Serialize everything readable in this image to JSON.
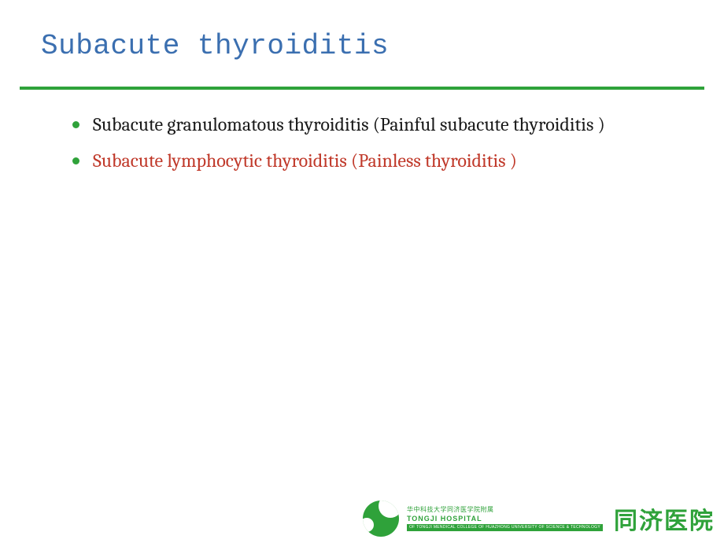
{
  "slide": {
    "title": "Subacute thyroiditis",
    "title_color": "#3b6fb0",
    "title_fontsize": 36,
    "title_font": "Courier New",
    "divider_color": "#2fa23a",
    "background_color": "#ffffff",
    "bullets": [
      {
        "text": "Subacute granulomatous thyroiditis (Painful subacute thyroiditis )",
        "color": "#1a1a1a",
        "highlight": false
      },
      {
        "text": "Subacute lymphocytic thyroiditis (Painless thyroiditis )",
        "color": "#c0392a",
        "highlight": true
      }
    ],
    "bullet_marker_color": "#2fa23a",
    "bullet_fontsize": 24
  },
  "footer": {
    "org_cn_top": "华中科技大学同济医学院附属",
    "org_en": "TONGJI HOSPITAL",
    "org_en_sub": "OF TONGJI MENDICAL COLLEGE OF HUAZHONG UNIVERSITY OF SCIENCE & TECHNOLOGY",
    "org_cn_big": "同济医院",
    "logo_color": "#2fa23a"
  }
}
